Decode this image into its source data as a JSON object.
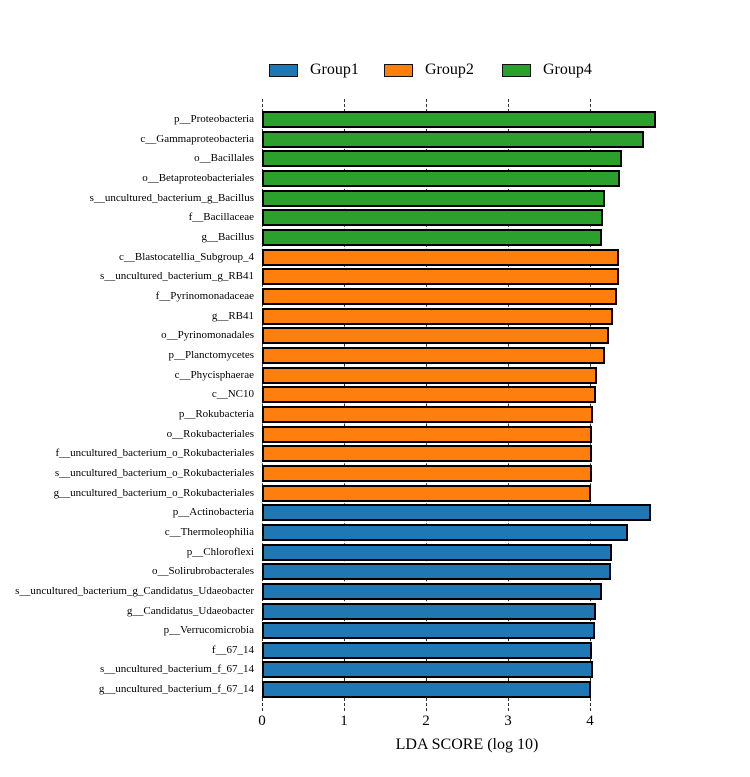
{
  "chart_data": {
    "type": "bar",
    "orientation": "horizontal",
    "xlabel": "LDA SCORE (log 10)",
    "xlim": [
      0,
      5
    ],
    "xticks": [
      "0",
      "1",
      "2",
      "3",
      "4"
    ],
    "grid": "vertical-dashed",
    "legend_position": "top",
    "legend": [
      {
        "label": "Group1",
        "color": "#1f77b4"
      },
      {
        "label": "Group2",
        "color": "#ff7f0e"
      },
      {
        "label": "Group4",
        "color": "#2ca02c"
      }
    ],
    "bars": [
      {
        "label": "p__Proteobacteria",
        "group": "Group4",
        "value": 4.8
      },
      {
        "label": "c__Gammaproteobacteria",
        "group": "Group4",
        "value": 4.66
      },
      {
        "label": "o__Bacillales",
        "group": "Group4",
        "value": 4.39
      },
      {
        "label": "o__Betaproteobacteriales",
        "group": "Group4",
        "value": 4.36
      },
      {
        "label": "s__uncultured_bacterium_g_Bacillus",
        "group": "Group4",
        "value": 4.18
      },
      {
        "label": "f__Bacillaceae",
        "group": "Group4",
        "value": 4.16
      },
      {
        "label": "g__Bacillus",
        "group": "Group4",
        "value": 4.15
      },
      {
        "label": "c__Blastocatellia_Subgroup_4",
        "group": "Group2",
        "value": 4.35
      },
      {
        "label": "s__uncultured_bacterium_g_RB41",
        "group": "Group2",
        "value": 4.35
      },
      {
        "label": "f__Pyrinomonadaceae",
        "group": "Group2",
        "value": 4.33
      },
      {
        "label": "g__RB41",
        "group": "Group2",
        "value": 4.28
      },
      {
        "label": "o__Pyrinomonadales",
        "group": "Group2",
        "value": 4.23
      },
      {
        "label": "p__Planctomycetes",
        "group": "Group2",
        "value": 4.18
      },
      {
        "label": "c__Phycisphaerae",
        "group": "Group2",
        "value": 4.09
      },
      {
        "label": "c__NC10",
        "group": "Group2",
        "value": 4.07
      },
      {
        "label": "p__Rokubacteria",
        "group": "Group2",
        "value": 4.04
      },
      {
        "label": "o__Rokubacteriales",
        "group": "Group2",
        "value": 4.02
      },
      {
        "label": "f__uncultured_bacterium_o_Rokubacteriales",
        "group": "Group2",
        "value": 4.02
      },
      {
        "label": "s__uncultured_bacterium_o_Rokubacteriales",
        "group": "Group2",
        "value": 4.02
      },
      {
        "label": "g__uncultured_bacterium_o_Rokubacteriales",
        "group": "Group2",
        "value": 4.01
      },
      {
        "label": "p__Actinobacteria",
        "group": "Group1",
        "value": 4.74
      },
      {
        "label": "c__Thermoleophilia",
        "group": "Group1",
        "value": 4.46
      },
      {
        "label": "p__Chloroflexi",
        "group": "Group1",
        "value": 4.27
      },
      {
        "label": "o__Solirubrobacterales",
        "group": "Group1",
        "value": 4.25
      },
      {
        "label": "s__uncultured_bacterium_g_Candidatus_Udaeobacter",
        "group": "Group1",
        "value": 4.15
      },
      {
        "label": "g__Candidatus_Udaeobacter",
        "group": "Group1",
        "value": 4.07
      },
      {
        "label": "p__Verrucomicrobia",
        "group": "Group1",
        "value": 4.06
      },
      {
        "label": "f__67_14",
        "group": "Group1",
        "value": 4.03
      },
      {
        "label": "s__uncultured_bacterium_f_67_14",
        "group": "Group1",
        "value": 4.04
      },
      {
        "label": "g__uncultured_bacterium_f_67_14",
        "group": "Group1",
        "value": 4.01
      }
    ]
  }
}
